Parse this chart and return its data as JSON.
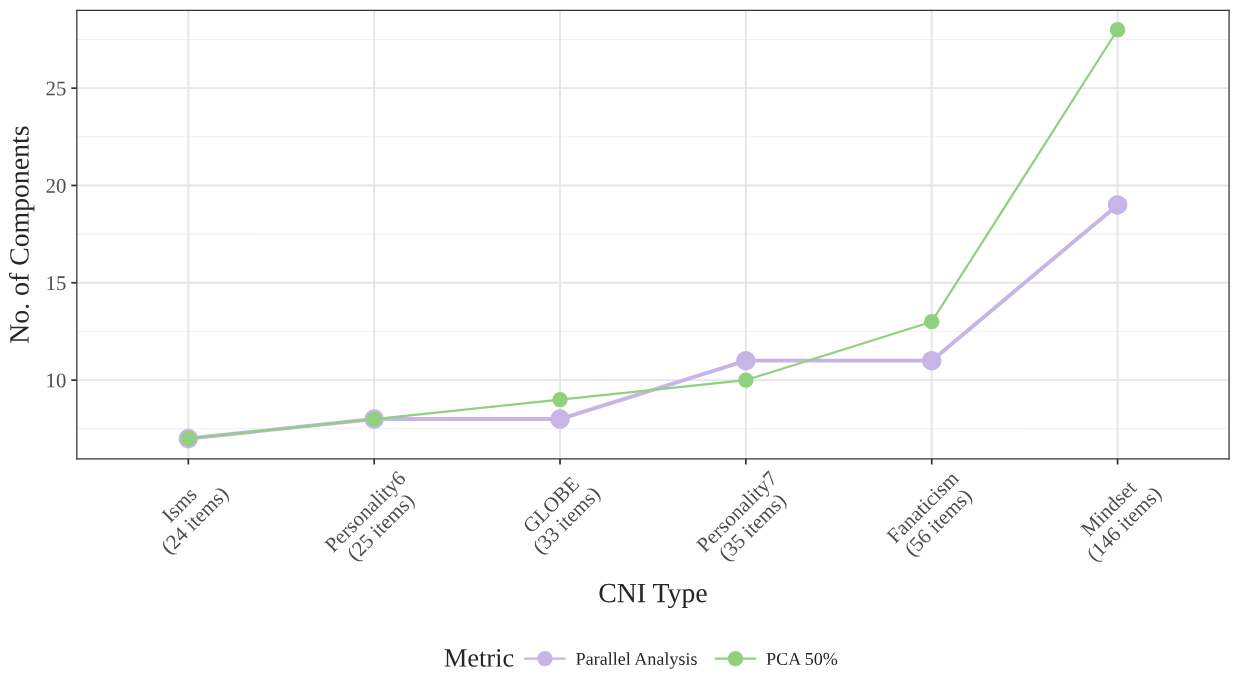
{
  "chart_data": {
    "type": "line",
    "xlabel": "CNI Type",
    "ylabel": "No. of Components",
    "legend_title": "Metric",
    "categories": [
      "Isms\n(24 items)",
      "Personality6\n(25 items)",
      "GLOBE\n(33 items)",
      "Personality7\n(35 items)",
      "Fanaticism\n(56 items)",
      "Mindset\n(146 items)"
    ],
    "series": [
      {
        "name": "Parallel Analysis",
        "color": "#c6b5e6",
        "values": [
          7,
          8,
          8,
          11,
          11,
          19
        ]
      },
      {
        "name": "PCA 50%",
        "color": "#8fd17e",
        "values": [
          7,
          8,
          9,
          10,
          13,
          28
        ]
      }
    ],
    "ylim": [
      5.95,
      29
    ],
    "yticks": [
      10,
      15,
      20,
      25
    ],
    "grid": true,
    "legend": "bottom",
    "marker": "circle",
    "line_style": "solid"
  }
}
